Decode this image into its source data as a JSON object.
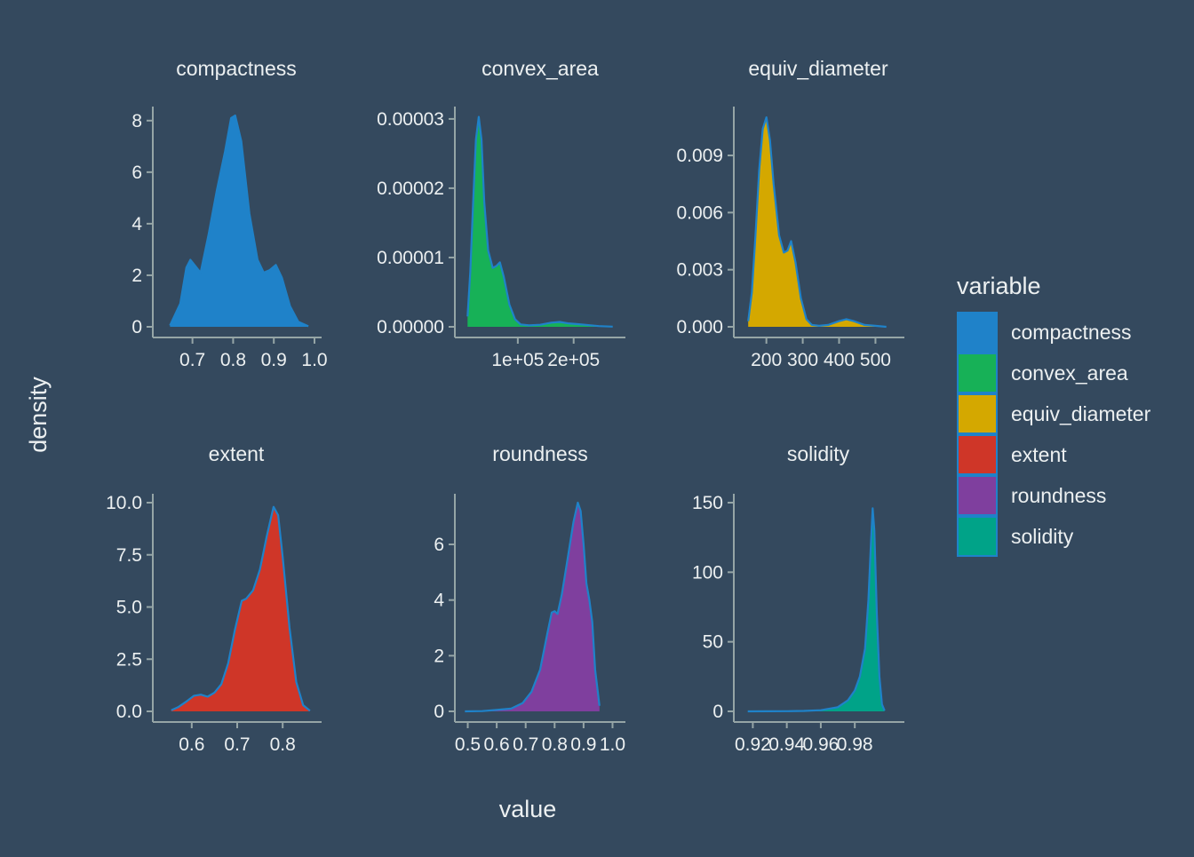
{
  "chart_data": {
    "type": "area",
    "xlabel": "value",
    "ylabel": "density",
    "legend": {
      "title": "variable",
      "position": "right",
      "items": [
        {
          "label": "compactness",
          "color": "#1f82c9"
        },
        {
          "label": "convex_area",
          "color": "#17b157"
        },
        {
          "label": "equiv_diameter",
          "color": "#d4a800"
        },
        {
          "label": "extent",
          "color": "#cf3628"
        },
        {
          "label": "roundness",
          "color": "#7f3f9e"
        },
        {
          "label": "solidity",
          "color": "#00a388"
        }
      ]
    },
    "line_color": "#1f82c9",
    "facets": [
      {
        "name": "compactness",
        "fill": "#1f82c9",
        "xlim": [
          0.62,
          1.0
        ],
        "ylim": [
          0,
          8.2
        ],
        "xticks": [
          {
            "v": 0.7,
            "label": "0.7"
          },
          {
            "v": 0.8,
            "label": "0.8"
          },
          {
            "v": 0.9,
            "label": "0.9"
          },
          {
            "v": 1.0,
            "label": "1.0"
          }
        ],
        "yticks": [
          {
            "v": 0,
            "label": "0"
          },
          {
            "v": 2,
            "label": "2"
          },
          {
            "v": 4,
            "label": "4"
          },
          {
            "v": 6,
            "label": "6"
          },
          {
            "v": 8,
            "label": "8"
          }
        ],
        "points": [
          [
            0.645,
            0.05
          ],
          [
            0.67,
            0.9
          ],
          [
            0.685,
            2.3
          ],
          [
            0.695,
            2.6
          ],
          [
            0.705,
            2.4
          ],
          [
            0.72,
            2.1
          ],
          [
            0.74,
            3.6
          ],
          [
            0.76,
            5.3
          ],
          [
            0.78,
            6.8
          ],
          [
            0.795,
            8.1
          ],
          [
            0.805,
            8.2
          ],
          [
            0.82,
            7.2
          ],
          [
            0.84,
            4.4
          ],
          [
            0.86,
            2.6
          ],
          [
            0.875,
            2.1
          ],
          [
            0.89,
            2.2
          ],
          [
            0.905,
            2.4
          ],
          [
            0.92,
            1.9
          ],
          [
            0.94,
            0.8
          ],
          [
            0.96,
            0.2
          ],
          [
            0.985,
            0.02
          ]
        ]
      },
      {
        "name": "convex_area",
        "fill": "#17b157",
        "xlim": [
          0,
          280000
        ],
        "ylim": [
          0,
          3.05e-05
        ],
        "xticks": [
          {
            "v": 100000,
            "label": "1e+05"
          },
          {
            "v": 200000,
            "label": "2e+05"
          }
        ],
        "yticks": [
          {
            "v": 0,
            "label": "0.00000"
          },
          {
            "v": 1e-05,
            "label": "0.00001"
          },
          {
            "v": 2e-05,
            "label": "0.00002"
          },
          {
            "v": 3e-05,
            "label": "0.00003"
          }
        ],
        "points": [
          [
            10000,
            1.5e-06
          ],
          [
            15000,
            8e-06
          ],
          [
            20000,
            1.8e-05
          ],
          [
            25000,
            2.7e-05
          ],
          [
            30000,
            3.03e-05
          ],
          [
            35000,
            2.7e-05
          ],
          [
            40000,
            1.8e-05
          ],
          [
            47000,
            1.1e-05
          ],
          [
            55000,
            8.5e-06
          ],
          [
            62000,
            8.8e-06
          ],
          [
            68000,
            9.3e-06
          ],
          [
            75000,
            7.2e-06
          ],
          [
            85000,
            3.2e-06
          ],
          [
            95000,
            1.1e-06
          ],
          [
            105000,
            3.5e-07
          ],
          [
            120000,
            2e-07
          ],
          [
            140000,
            3e-07
          ],
          [
            160000,
            6e-07
          ],
          [
            175000,
            7e-07
          ],
          [
            190000,
            5e-07
          ],
          [
            205000,
            4e-07
          ],
          [
            220000,
            3e-07
          ],
          [
            245000,
            1e-07
          ],
          [
            270000,
            3e-08
          ]
        ]
      },
      {
        "name": "equiv_diameter",
        "fill": "#d4a800",
        "xlim": [
          130,
          560
        ],
        "ylim": [
          0,
          0.0111
        ],
        "xticks": [
          {
            "v": 200,
            "label": "200"
          },
          {
            "v": 300,
            "label": "300"
          },
          {
            "v": 400,
            "label": "400"
          },
          {
            "v": 500,
            "label": "500"
          }
        ],
        "yticks": [
          {
            "v": 0,
            "label": "0.000"
          },
          {
            "v": 0.003,
            "label": "0.003"
          },
          {
            "v": 0.006,
            "label": "0.006"
          },
          {
            "v": 0.009,
            "label": "0.009"
          }
        ],
        "points": [
          [
            150,
            0.0003
          ],
          [
            160,
            0.0018
          ],
          [
            170,
            0.0048
          ],
          [
            180,
            0.0082
          ],
          [
            190,
            0.0104
          ],
          [
            200,
            0.011
          ],
          [
            210,
            0.0098
          ],
          [
            220,
            0.0075
          ],
          [
            235,
            0.0048
          ],
          [
            248,
            0.0039
          ],
          [
            258,
            0.004
          ],
          [
            268,
            0.0045
          ],
          [
            280,
            0.0034
          ],
          [
            295,
            0.0015
          ],
          [
            310,
            0.0004
          ],
          [
            325,
            0.0001
          ],
          [
            345,
            5e-05
          ],
          [
            370,
            0.0001
          ],
          [
            400,
            0.0003
          ],
          [
            420,
            0.0004
          ],
          [
            440,
            0.0003
          ],
          [
            470,
            0.0001
          ],
          [
            500,
            5e-05
          ],
          [
            530,
            0.0
          ]
        ]
      },
      {
        "name": "extent",
        "fill": "#cf3628",
        "xlim": [
          0.53,
          0.87
        ],
        "ylim": [
          0,
          10.0
        ],
        "xticks": [
          {
            "v": 0.6,
            "label": "0.6"
          },
          {
            "v": 0.7,
            "label": "0.7"
          },
          {
            "v": 0.8,
            "label": "0.8"
          }
        ],
        "yticks": [
          {
            "v": 0,
            "label": "0.0"
          },
          {
            "v": 2.5,
            "label": "2.5"
          },
          {
            "v": 5.0,
            "label": "5.0"
          },
          {
            "v": 7.5,
            "label": "7.5"
          },
          {
            "v": 10.0,
            "label": "10.0"
          }
        ],
        "points": [
          [
            0.555,
            0.05
          ],
          [
            0.57,
            0.2
          ],
          [
            0.59,
            0.5
          ],
          [
            0.605,
            0.75
          ],
          [
            0.62,
            0.8
          ],
          [
            0.635,
            0.7
          ],
          [
            0.65,
            0.9
          ],
          [
            0.665,
            1.3
          ],
          [
            0.68,
            2.3
          ],
          [
            0.695,
            3.9
          ],
          [
            0.71,
            5.3
          ],
          [
            0.72,
            5.4
          ],
          [
            0.735,
            5.8
          ],
          [
            0.75,
            6.8
          ],
          [
            0.765,
            8.4
          ],
          [
            0.78,
            9.8
          ],
          [
            0.79,
            9.4
          ],
          [
            0.8,
            7.4
          ],
          [
            0.815,
            4.0
          ],
          [
            0.83,
            1.4
          ],
          [
            0.845,
            0.3
          ],
          [
            0.86,
            0.03
          ]
        ]
      },
      {
        "name": "roundness",
        "fill": "#7f3f9e",
        "xlim": [
          0.48,
          1.02
        ],
        "ylim": [
          0,
          7.5
        ],
        "xticks": [
          {
            "v": 0.5,
            "label": "0.5"
          },
          {
            "v": 0.6,
            "label": "0.6"
          },
          {
            "v": 0.7,
            "label": "0.7"
          },
          {
            "v": 0.8,
            "label": "0.8"
          },
          {
            "v": 0.9,
            "label": "0.9"
          },
          {
            "v": 1.0,
            "label": "1.0"
          }
        ],
        "yticks": [
          {
            "v": 0,
            "label": "0"
          },
          {
            "v": 2,
            "label": "2"
          },
          {
            "v": 4,
            "label": "4"
          },
          {
            "v": 6,
            "label": "6"
          }
        ],
        "points": [
          [
            0.49,
            0.0
          ],
          [
            0.55,
            0.01
          ],
          [
            0.6,
            0.05
          ],
          [
            0.65,
            0.1
          ],
          [
            0.69,
            0.3
          ],
          [
            0.72,
            0.7
          ],
          [
            0.75,
            1.5
          ],
          [
            0.775,
            2.8
          ],
          [
            0.79,
            3.55
          ],
          [
            0.8,
            3.6
          ],
          [
            0.81,
            3.5
          ],
          [
            0.825,
            4.2
          ],
          [
            0.845,
            5.5
          ],
          [
            0.865,
            6.8
          ],
          [
            0.88,
            7.5
          ],
          [
            0.89,
            7.2
          ],
          [
            0.9,
            6.0
          ],
          [
            0.91,
            4.6
          ],
          [
            0.92,
            4.0
          ],
          [
            0.93,
            3.2
          ],
          [
            0.94,
            1.5
          ],
          [
            0.955,
            0.2
          ]
        ]
      },
      {
        "name": "solidity",
        "fill": "#00a388",
        "xlim": [
          0.913,
          1.005
        ],
        "ylim": [
          0,
          150
        ],
        "xticks": [
          {
            "v": 0.92,
            "label": "0.92"
          },
          {
            "v": 0.94,
            "label": "0.94"
          },
          {
            "v": 0.96,
            "label": "0.96"
          },
          {
            "v": 0.98,
            "label": "0.98"
          }
        ],
        "yticks": [
          {
            "v": 0,
            "label": "0"
          },
          {
            "v": 50,
            "label": "50"
          },
          {
            "v": 100,
            "label": "100"
          },
          {
            "v": 150,
            "label": "150"
          }
        ],
        "points": [
          [
            0.917,
            0.0
          ],
          [
            0.93,
            0.05
          ],
          [
            0.94,
            0.1
          ],
          [
            0.95,
            0.3
          ],
          [
            0.96,
            0.8
          ],
          [
            0.97,
            3.0
          ],
          [
            0.976,
            8.0
          ],
          [
            0.98,
            15.0
          ],
          [
            0.983,
            25.0
          ],
          [
            0.986,
            45.0
          ],
          [
            0.988,
            80.0
          ],
          [
            0.9895,
            120.0
          ],
          [
            0.9905,
            146.0
          ],
          [
            0.9915,
            130.0
          ],
          [
            0.993,
            70.0
          ],
          [
            0.9945,
            25.0
          ],
          [
            0.996,
            5.0
          ],
          [
            0.9975,
            0.5
          ]
        ]
      }
    ]
  }
}
